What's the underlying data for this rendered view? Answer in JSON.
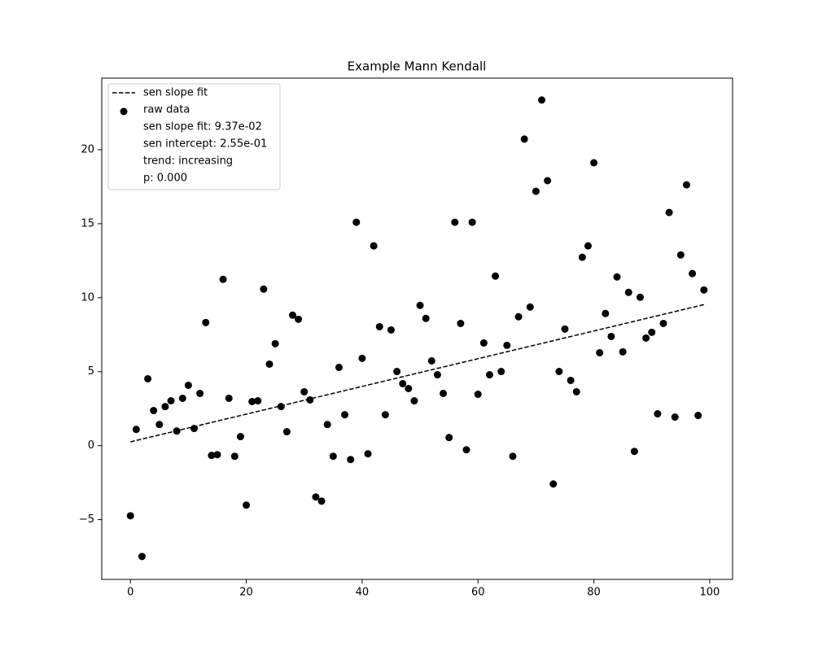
{
  "chart_data": {
    "type": "scatter",
    "title": "Example Mann Kendall",
    "xlim": [
      -4.95,
      103.95
    ],
    "ylim": [
      -9.04,
      24.84
    ],
    "xticks": [
      0,
      20,
      40,
      60,
      80,
      100
    ],
    "yticks": [
      {
        "value": -5,
        "label": "−5"
      },
      0,
      5,
      10,
      15,
      20
    ],
    "legend_position": "upper left",
    "legend_notes": [
      "sen slope fit: 9.37e-02",
      "sen intercept: 2.55e-01",
      "trend: increasing",
      "p: 0.000"
    ],
    "series": [
      {
        "name": "sen slope fit",
        "type": "line",
        "linestyle": "dashed",
        "color": "#000000",
        "x": [
          0,
          99
        ],
        "values": [
          0.255,
          9.531
        ]
      },
      {
        "name": "raw data",
        "type": "scatter",
        "color": "#000000",
        "x": [
          0,
          1,
          2,
          3,
          4,
          5,
          6,
          7,
          8,
          9,
          10,
          11,
          12,
          13,
          14,
          15,
          16,
          17,
          18,
          19,
          20,
          21,
          22,
          23,
          24,
          25,
          26,
          27,
          28,
          29,
          30,
          31,
          32,
          33,
          34,
          35,
          36,
          37,
          38,
          39,
          40,
          41,
          42,
          43,
          44,
          45,
          46,
          47,
          48,
          49,
          50,
          51,
          52,
          53,
          54,
          55,
          56,
          57,
          58,
          59,
          60,
          61,
          62,
          63,
          64,
          65,
          66,
          67,
          68,
          69,
          70,
          71,
          72,
          73,
          74,
          75,
          76,
          77,
          78,
          79,
          80,
          81,
          82,
          83,
          84,
          85,
          86,
          87,
          88,
          89,
          90,
          91,
          92,
          93,
          94,
          95,
          96,
          97,
          98,
          99
        ],
        "values": [
          -4.74,
          1.1,
          -7.49,
          4.52,
          2.37,
          1.43,
          2.64,
          3.03,
          0.99,
          3.2,
          4.08,
          1.16,
          3.53,
          8.32,
          -0.66,
          -0.61,
          11.24,
          3.2,
          -0.72,
          0.61,
          -4.02,
          2.98,
          3.03,
          10.58,
          5.51,
          6.89,
          2.64,
          0.94,
          8.82,
          8.54,
          3.64,
          3.09,
          -3.47,
          -3.75,
          1.43,
          -0.72,
          5.29,
          2.09,
          -0.94,
          15.1,
          5.9,
          -0.55,
          13.5,
          8.04,
          2.09,
          7.82,
          5.01,
          4.19,
          3.86,
          3.03,
          9.48,
          8.6,
          5.73,
          4.79,
          3.53,
          0.55,
          15.1,
          8.26,
          -0.28,
          15.1,
          3.47,
          6.94,
          4.79,
          11.46,
          5.01,
          6.78,
          -0.72,
          8.71,
          20.72,
          9.37,
          17.19,
          23.36,
          17.91,
          -2.59,
          5.01,
          7.88,
          4.41,
          3.64,
          12.73,
          13.5,
          19.12,
          6.28,
          8.93,
          7.38,
          11.4,
          6.34,
          10.36,
          -0.39,
          10.03,
          7.27,
          7.66,
          2.15,
          8.26,
          15.76,
          1.93,
          12.89,
          17.63,
          11.63,
          2.04,
          10.52
        ]
      }
    ]
  }
}
